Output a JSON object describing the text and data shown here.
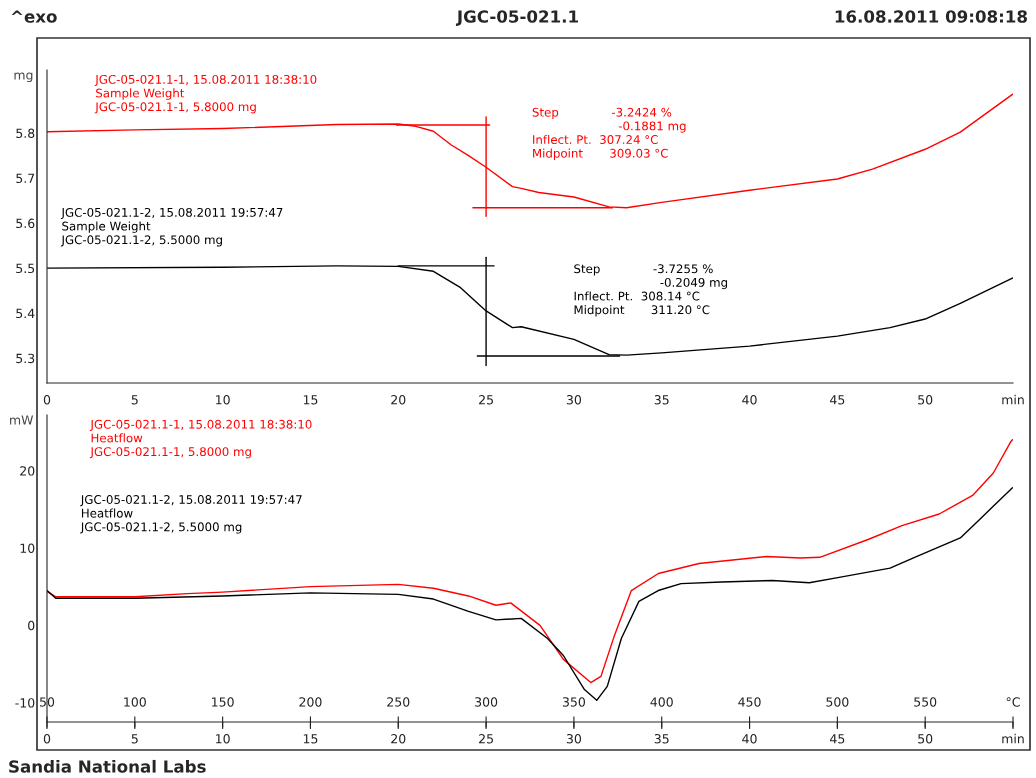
{
  "chart_data": [
    {
      "type": "line",
      "title": "JGC-05-021.1",
      "ylabel": "mg",
      "annotations": [
        "^exo",
        "16.08.2011 09:08:18",
        "Step              -3.2424 %\n                       -0.1881 mg\nInflect. Pt.  307.24 °C\nMidpoint       309.03 °C",
        "Step              -3.7255 %\n                       -0.2049 mg\nInflect. Pt.  308.14 °C\nMidpoint       311.20 °C"
      ],
      "series": [
        {
          "name": "JGC-05-021.1-1, 15.08.2011 18:38:10\nSample Weight\nJGC-05-021.1-1, 5.8000 mg",
          "color": "#ff0000",
          "x": [
            0,
            5,
            10,
            16.5,
            20,
            21,
            22,
            23,
            24,
            25,
            26.5,
            27,
            28,
            30,
            32,
            33,
            35,
            40,
            45,
            47,
            50,
            52,
            54.97
          ],
          "values": [
            5.803,
            5.807,
            5.81,
            5.819,
            5.82,
            5.815,
            5.804,
            5.774,
            5.75,
            5.724,
            5.681,
            5.677,
            5.668,
            5.658,
            5.636,
            5.634,
            5.646,
            5.673,
            5.698,
            5.72,
            5.764,
            5.802,
            5.886
          ]
        },
        {
          "name": "JGC-05-021.1-2, 15.08.2011 19:57:47\nSample Weight\nJGC-05-021.1-2, 5.5000 mg",
          "color": "#000000",
          "x": [
            0,
            10,
            16.5,
            20,
            22,
            23.5,
            25,
            26.5,
            27,
            30,
            32,
            33,
            35,
            40,
            45,
            48,
            50,
            52,
            54.97
          ],
          "values": [
            5.5,
            5.502,
            5.505,
            5.504,
            5.493,
            5.458,
            5.405,
            5.368,
            5.37,
            5.342,
            5.308,
            5.307,
            5.312,
            5.327,
            5.349,
            5.368,
            5.387,
            5.422,
            5.478
          ]
        },
        {
          "color": "#ff0000",
          "x": [
            19.9,
            25.2
          ],
          "values": [
            5.818,
            5.818
          ]
        },
        {
          "color": "#ff0000",
          "x": [
            25,
            25
          ],
          "values": [
            5.836,
            5.615
          ]
        },
        {
          "color": "#ff0000",
          "x": [
            24.25,
            32.2
          ],
          "values": [
            5.634,
            5.634
          ]
        },
        {
          "color": "#000000",
          "x": [
            20,
            25.45
          ],
          "values": [
            5.505,
            5.505
          ]
        },
        {
          "color": "#000000",
          "x": [
            25,
            25
          ],
          "values": [
            5.524,
            5.284
          ]
        },
        {
          "color": "#000000",
          "x": [
            24.5,
            32.6
          ],
          "values": [
            5.305,
            5.305
          ]
        }
      ],
      "xlim": [
        0,
        55
      ],
      "xticks": [
        0,
        5,
        10,
        15,
        20,
        25,
        30,
        35,
        40,
        45,
        50,
        {
          "value": 55,
          "label": "min"
        }
      ],
      "ylim": [
        5.245,
        5.94
      ],
      "yticks": [
        5.3,
        5.4,
        5.5,
        5.6,
        5.7,
        5.8
      ],
      "grid": false,
      "legend": false
    },
    {
      "type": "line",
      "ylabel": "mW",
      "annotations": [
        "Sandia National Labs"
      ],
      "series": [
        {
          "name": "JGC-05-021.1-1, 15.08.2011 18:38:10\nHeatflow\nJGC-05-021.1-1, 5.8000 mg",
          "color": "#ff0000",
          "x": [
            0,
            0.5,
            5,
            8,
            10,
            15,
            20,
            22,
            24,
            25.56,
            26.4,
            28.07,
            29.4,
            30.96,
            31.54,
            32.31,
            33.27,
            34.81,
            37.12,
            40.97,
            42.9,
            44.0,
            46.75,
            48.68,
            50.8,
            52.7,
            53.88,
            54.86,
            54.97
          ],
          "values": [
            4.4,
            3.7,
            3.7,
            4.1,
            4.3,
            5.0,
            5.3,
            4.8,
            3.8,
            2.6,
            2.9,
            0.0,
            -4.4,
            -7.4,
            -6.6,
            -1.3,
            4.5,
            6.7,
            8.0,
            8.9,
            8.7,
            8.8,
            11.1,
            12.9,
            14.4,
            16.8,
            19.7,
            23.7,
            24.0
          ]
        },
        {
          "name": "JGC-05-021.1-2, 15.08.2011 19:57:47\nHeatflow\nJGC-05-021.1-2, 5.5000 mg",
          "color": "#000000",
          "x": [
            0,
            0.5,
            5,
            10,
            15,
            20,
            22,
            24,
            25.56,
            27.0,
            28.5,
            29.4,
            30.6,
            31.3,
            31.9,
            32.7,
            33.7,
            34.8,
            36.1,
            38.4,
            41.3,
            43.4,
            45.1,
            48.0,
            49.5,
            52.0,
            53.1,
            54.97
          ],
          "values": [
            4.5,
            3.5,
            3.5,
            3.8,
            4.2,
            4.0,
            3.4,
            1.8,
            0.7,
            0.9,
            -1.7,
            -3.9,
            -8.3,
            -9.7,
            -7.9,
            -1.7,
            3.1,
            4.5,
            5.4,
            5.6,
            5.8,
            5.5,
            6.2,
            7.4,
            8.9,
            11.3,
            13.7,
            17.8
          ]
        }
      ],
      "xlim": [
        0,
        55
      ],
      "xticks": [
        0,
        5,
        10,
        15,
        20,
        25,
        30,
        35,
        40,
        45,
        50,
        {
          "value": 55,
          "label": "min"
        }
      ],
      "x2lim": [
        50,
        600
      ],
      "x2ticks": [
        50,
        100,
        150,
        200,
        250,
        300,
        350,
        400,
        450,
        500,
        550,
        {
          "value": 600,
          "label": "°C"
        }
      ],
      "ylim": [
        -12.5,
        27.2
      ],
      "yticks": [
        -10,
        0,
        10,
        20
      ],
      "grid": false,
      "legend": false
    }
  ]
}
